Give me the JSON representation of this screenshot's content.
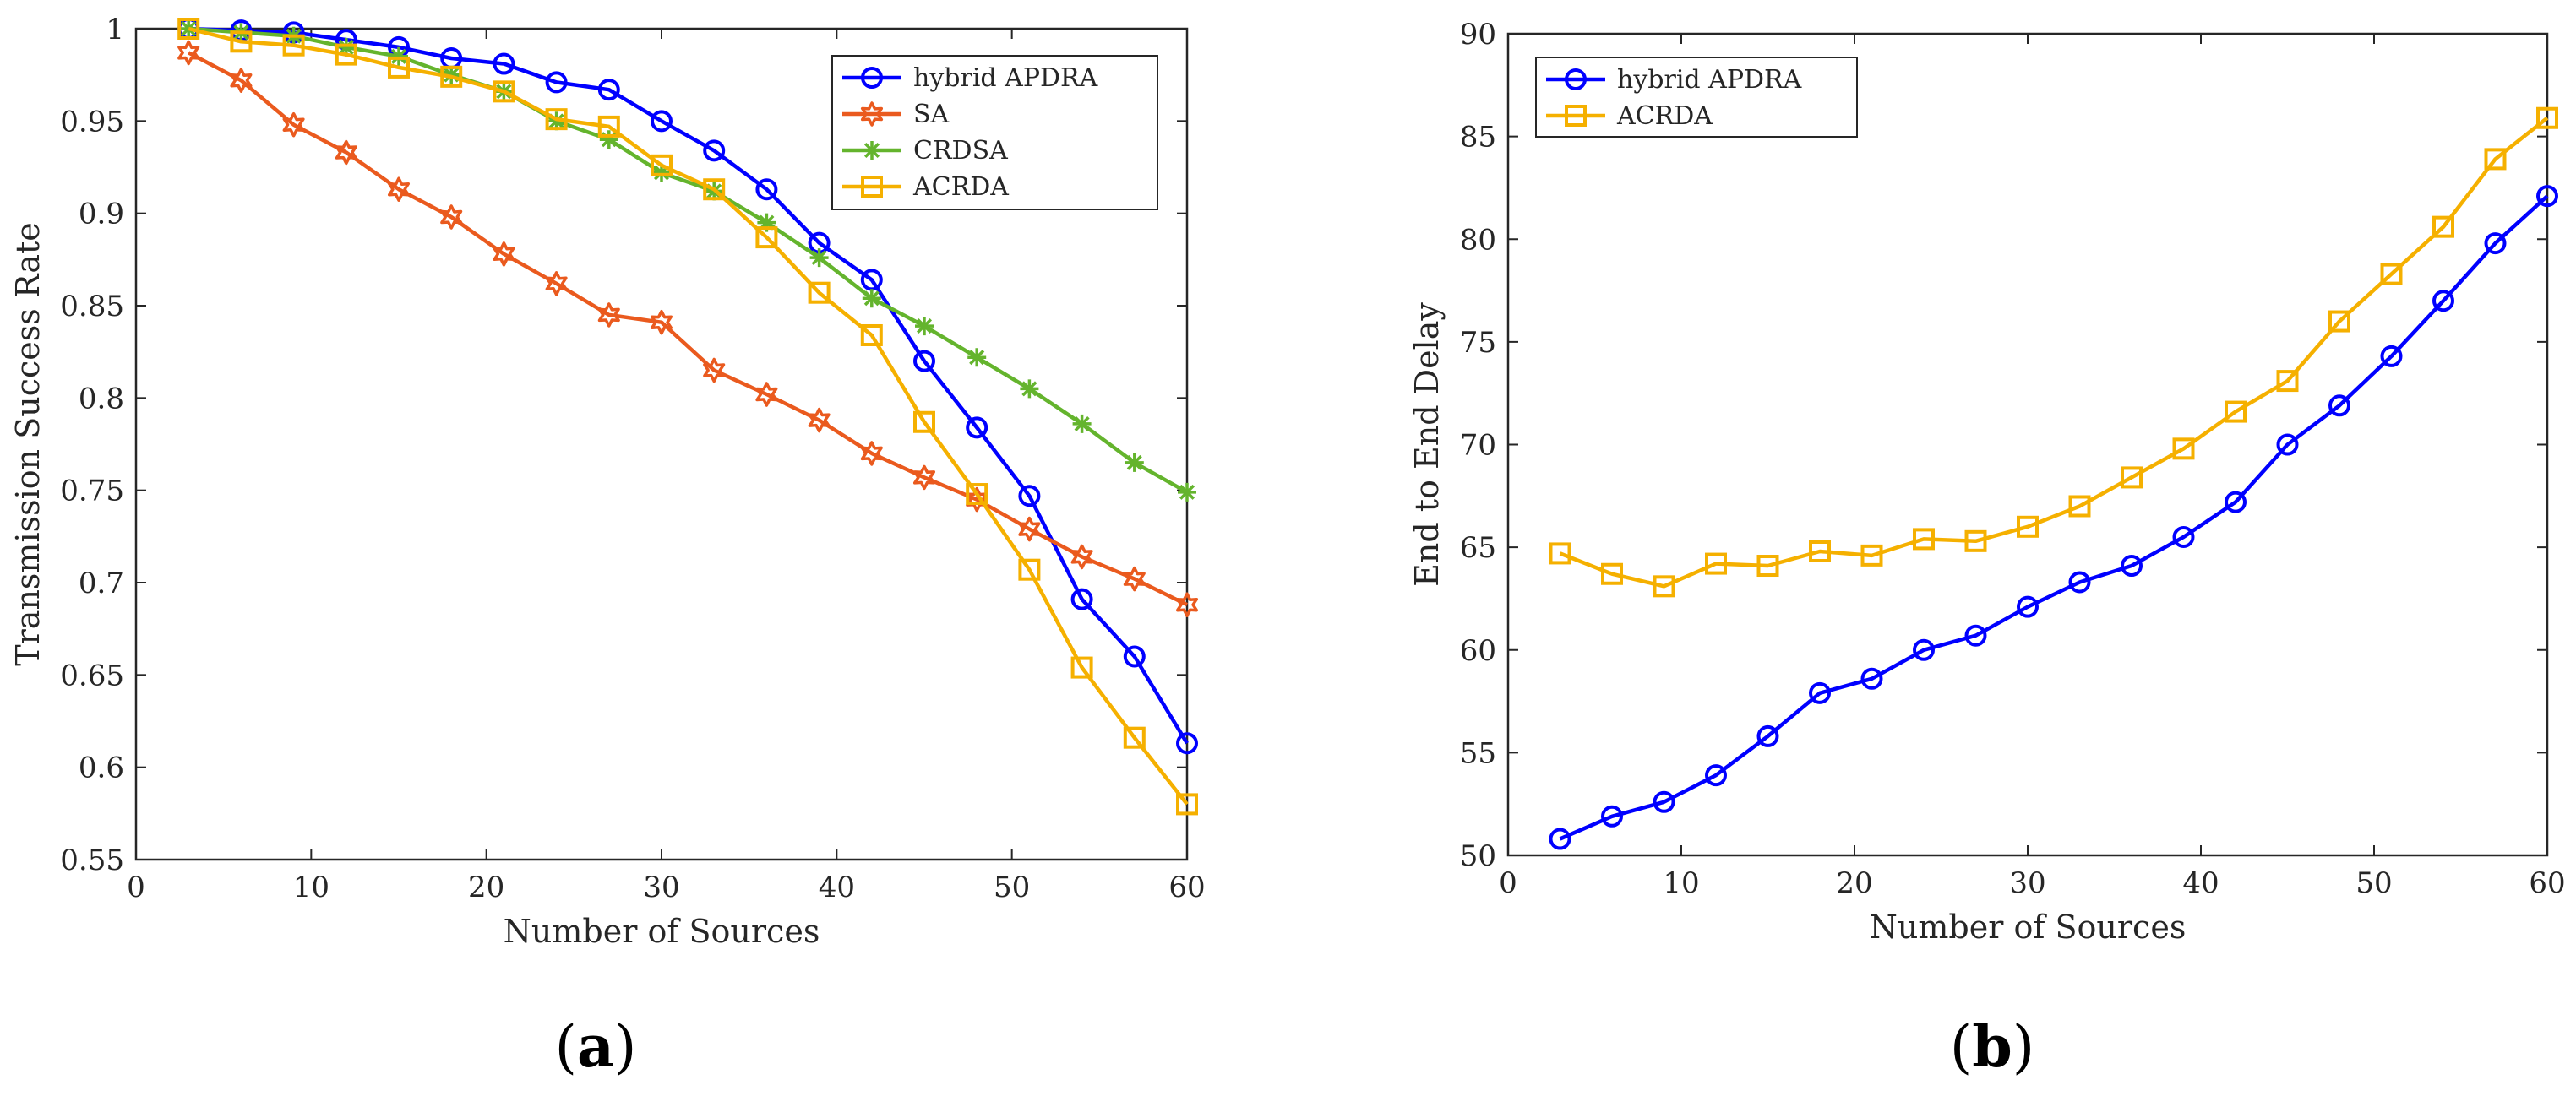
{
  "chart_data": [
    {
      "type": "line",
      "panel_label": {
        "open": "(",
        "letter": "a",
        "close": ")"
      },
      "xlabel": "Number of Sources",
      "ylabel": "Transmission Success Rate",
      "xlim": [
        0,
        60
      ],
      "ylim": [
        0.55,
        1
      ],
      "xticks": [
        0,
        10,
        20,
        30,
        40,
        50,
        60
      ],
      "xtick_labels": [
        "0",
        "10",
        "20",
        "30",
        "40",
        "50",
        "60"
      ],
      "yticks": [
        0.55,
        0.6,
        0.65,
        0.7,
        0.75,
        0.8,
        0.85,
        0.9,
        0.95,
        1
      ],
      "ytick_labels": [
        "0.55",
        "0.6",
        "0.65",
        "0.7",
        "0.75",
        "0.8",
        "0.85",
        "0.9",
        "0.95",
        "1"
      ],
      "grid": false,
      "legend_position": "top-right",
      "x": [
        3,
        6,
        9,
        12,
        15,
        18,
        21,
        24,
        27,
        30,
        33,
        36,
        39,
        42,
        45,
        48,
        51,
        54,
        57,
        60
      ],
      "series": [
        {
          "name": "hybrid APDRA",
          "color": "#0000ff",
          "marker": "circle",
          "values": [
            1.0,
            0.999,
            0.998,
            0.994,
            0.99,
            0.984,
            0.981,
            0.971,
            0.967,
            0.95,
            0.934,
            0.913,
            0.884,
            0.864,
            0.82,
            0.784,
            0.747,
            0.691,
            0.66,
            0.613
          ]
        },
        {
          "name": "SA",
          "color": "#ea5a1e",
          "marker": "hexagram",
          "values": [
            0.987,
            0.972,
            0.948,
            0.933,
            0.913,
            0.898,
            0.878,
            0.862,
            0.845,
            0.841,
            0.815,
            0.802,
            0.788,
            0.77,
            0.757,
            0.745,
            0.729,
            0.714,
            0.702,
            0.688
          ]
        },
        {
          "name": "CRDSA",
          "color": "#64b42d",
          "marker": "asterisk",
          "values": [
            1.0,
            0.998,
            0.996,
            0.99,
            0.985,
            0.975,
            0.966,
            0.95,
            0.94,
            0.922,
            0.912,
            0.895,
            0.876,
            0.854,
            0.839,
            0.822,
            0.805,
            0.786,
            0.765,
            0.749
          ]
        },
        {
          "name": "ACRDA",
          "color": "#f5b000",
          "marker": "square",
          "values": [
            1.0,
            0.993,
            0.991,
            0.986,
            0.979,
            0.974,
            0.966,
            0.951,
            0.947,
            0.926,
            0.913,
            0.887,
            0.857,
            0.834,
            0.787,
            0.748,
            0.707,
            0.654,
            0.616,
            0.58
          ]
        }
      ]
    },
    {
      "type": "line",
      "panel_label": {
        "open": "(",
        "letter": "b",
        "close": ")"
      },
      "xlabel": "Number of Sources",
      "ylabel": "End to End Delay",
      "xlim": [
        0,
        60
      ],
      "ylim": [
        50,
        90
      ],
      "xticks": [
        0,
        10,
        20,
        30,
        40,
        50,
        60
      ],
      "xtick_labels": [
        "0",
        "10",
        "20",
        "30",
        "40",
        "50",
        "60"
      ],
      "yticks": [
        50,
        55,
        60,
        65,
        70,
        75,
        80,
        85,
        90
      ],
      "ytick_labels": [
        "50",
        "55",
        "60",
        "65",
        "70",
        "75",
        "80",
        "85",
        "90"
      ],
      "grid": false,
      "legend_position": "top-left",
      "x": [
        3,
        6,
        9,
        12,
        15,
        18,
        21,
        24,
        27,
        30,
        33,
        36,
        39,
        42,
        45,
        48,
        51,
        54,
        57,
        60
      ],
      "series": [
        {
          "name": "hybrid APDRA",
          "color": "#0000ff",
          "marker": "circle",
          "values": [
            50.8,
            51.9,
            52.6,
            53.9,
            55.8,
            57.9,
            58.6,
            60.0,
            60.7,
            62.1,
            63.3,
            64.1,
            65.5,
            67.2,
            70.0,
            71.9,
            74.3,
            77.0,
            79.8,
            82.1
          ]
        },
        {
          "name": "ACRDA",
          "color": "#f5b000",
          "marker": "square",
          "values": [
            64.7,
            63.7,
            63.1,
            64.2,
            64.1,
            64.8,
            64.6,
            65.4,
            65.3,
            66.0,
            67.0,
            68.4,
            69.8,
            71.6,
            73.1,
            76.0,
            78.3,
            80.6,
            83.9,
            85.9
          ]
        }
      ]
    }
  ]
}
